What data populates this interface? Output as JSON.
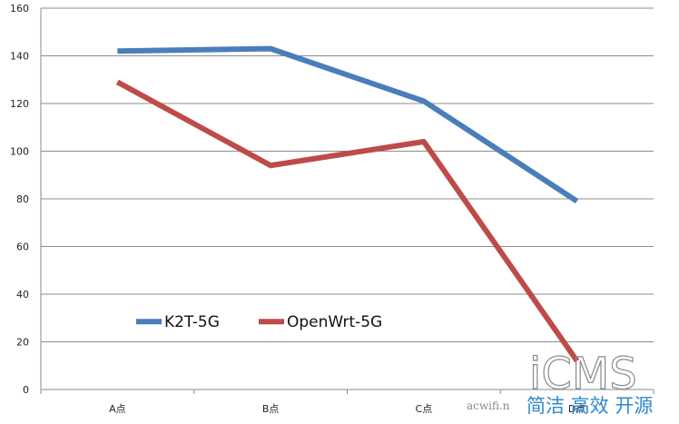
{
  "chart_data": {
    "type": "line",
    "title": "",
    "xlabel": "",
    "ylabel": "",
    "categories": [
      "A点",
      "B点",
      "C点",
      "D点"
    ],
    "ylim": [
      0,
      160
    ],
    "yticks": [
      0,
      20,
      40,
      60,
      80,
      100,
      120,
      140,
      160
    ],
    "grid": true,
    "legend_position": "bottom-left inside",
    "series": [
      {
        "name": "K2T-5G",
        "color": "#4a7ebb",
        "values": [
          142,
          143,
          121,
          79
        ]
      },
      {
        "name": "OpenWrt-5G",
        "color": "#be4b48",
        "values": [
          129,
          94,
          104,
          12
        ]
      }
    ]
  },
  "watermark": {
    "logo": "iCMS",
    "slogan": "简洁 高效 开源",
    "url": "acwifi.n"
  }
}
